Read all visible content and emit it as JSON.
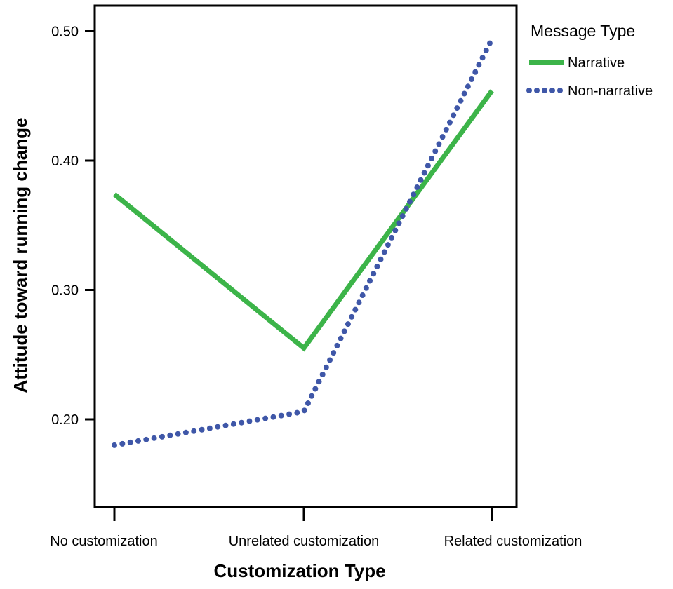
{
  "chart_data": {
    "type": "line",
    "title": "",
    "xlabel": "Customization Type",
    "ylabel": "Attitude toward running change",
    "categories": [
      "No customization",
      "Unrelated customization",
      "Related customization"
    ],
    "ylim": [
      0.13,
      0.52
    ],
    "yticks": [
      0.2,
      0.3,
      0.4,
      0.5
    ],
    "ytick_labels": [
      "0.20",
      "0.30",
      "0.40",
      "0.50"
    ],
    "grid": false,
    "legend": {
      "title": "Message Type",
      "placement": "right"
    },
    "series": [
      {
        "name": "Narrative",
        "values": [
          0.374,
          0.255,
          0.454
        ],
        "color": "#3cb449",
        "style": "solid"
      },
      {
        "name": "Non-narrative",
        "values": [
          0.18,
          0.206,
          0.494
        ],
        "color": "#3f57a8",
        "style": "dotted"
      }
    ]
  }
}
